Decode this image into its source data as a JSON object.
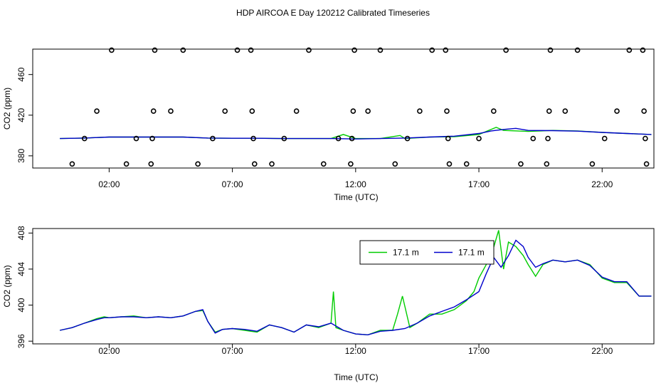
{
  "page": {
    "title": "HDP AIRCOA E  Day 120212  Calibrated Timeseries"
  },
  "chart_data": [
    {
      "type": "line",
      "xlabel": "Time (UTC)",
      "ylabel": "CO2 (ppm)",
      "x_ticks": [
        2,
        7,
        12,
        17,
        22
      ],
      "x_tick_labels": [
        "02:00",
        "07:00",
        "12:00",
        "17:00",
        "22:00"
      ],
      "xlim": [
        -1.1,
        24.1
      ],
      "ylim": [
        368,
        485
      ],
      "y_ticks": [
        380,
        420,
        460
      ],
      "y_tick_labels": [
        "380",
        "420",
        "460"
      ],
      "colors": {
        "green": "#00cc00",
        "blue": "#0000cc",
        "points": "#000000"
      },
      "series": [
        {
          "color": "green",
          "x": [
            0,
            1,
            2,
            3,
            4,
            5,
            6,
            7,
            8,
            9,
            10,
            11,
            11.5,
            12,
            13,
            13.8,
            14,
            15,
            16,
            17,
            17.7,
            18,
            19,
            20,
            21,
            22,
            23,
            24
          ],
          "y": [
            397,
            397.5,
            398.5,
            398.5,
            398.5,
            398.5,
            397.5,
            397.3,
            397.3,
            397,
            397,
            397,
            401,
            397,
            397,
            400,
            397,
            398.5,
            398.8,
            401,
            408,
            405,
            404,
            405,
            404.5,
            403,
            402,
            401
          ]
        },
        {
          "color": "blue",
          "x": [
            0,
            1,
            2,
            3,
            4,
            5,
            6,
            7,
            8,
            9,
            10,
            11,
            12,
            13,
            14,
            15,
            16,
            17,
            17.5,
            18,
            18.5,
            19,
            20,
            21,
            22,
            23,
            24
          ],
          "y": [
            397,
            397.5,
            398.5,
            398.5,
            398.5,
            398.5,
            397.5,
            397.3,
            397.3,
            397,
            397,
            397,
            396.6,
            397,
            397.5,
            398.5,
            399.3,
            402,
            404.5,
            406,
            407,
            405,
            404.8,
            404.3,
            403,
            402,
            401
          ]
        }
      ],
      "scatter_points": [
        {
          "x": 0.5,
          "y": 372
        },
        {
          "x": 1,
          "y": 397
        },
        {
          "x": 1.5,
          "y": 424
        },
        {
          "x": 2.1,
          "y": 484
        },
        {
          "x": 2.7,
          "y": 372
        },
        {
          "x": 3.1,
          "y": 397
        },
        {
          "x": 3.7,
          "y": 372
        },
        {
          "x": 3.75,
          "y": 397
        },
        {
          "x": 3.8,
          "y": 424
        },
        {
          "x": 3.85,
          "y": 484
        },
        {
          "x": 4.5,
          "y": 424
        },
        {
          "x": 5,
          "y": 484
        },
        {
          "x": 5.6,
          "y": 372
        },
        {
          "x": 6.2,
          "y": 397
        },
        {
          "x": 6.7,
          "y": 424
        },
        {
          "x": 7.2,
          "y": 484
        },
        {
          "x": 7.75,
          "y": 484
        },
        {
          "x": 7.8,
          "y": 424
        },
        {
          "x": 7.85,
          "y": 397
        },
        {
          "x": 7.9,
          "y": 372
        },
        {
          "x": 8.6,
          "y": 372
        },
        {
          "x": 9.1,
          "y": 397
        },
        {
          "x": 9.6,
          "y": 424
        },
        {
          "x": 10.1,
          "y": 484
        },
        {
          "x": 10.7,
          "y": 372
        },
        {
          "x": 11.3,
          "y": 397
        },
        {
          "x": 11.8,
          "y": 372
        },
        {
          "x": 11.85,
          "y": 397
        },
        {
          "x": 11.9,
          "y": 424
        },
        {
          "x": 11.95,
          "y": 484
        },
        {
          "x": 12.5,
          "y": 424
        },
        {
          "x": 13.0,
          "y": 484
        },
        {
          "x": 13.6,
          "y": 372
        },
        {
          "x": 14.1,
          "y": 397
        },
        {
          "x": 14.6,
          "y": 424
        },
        {
          "x": 15.1,
          "y": 484
        },
        {
          "x": 15.65,
          "y": 484
        },
        {
          "x": 15.7,
          "y": 424
        },
        {
          "x": 15.75,
          "y": 397
        },
        {
          "x": 15.8,
          "y": 372
        },
        {
          "x": 16.5,
          "y": 372
        },
        {
          "x": 17.0,
          "y": 397
        },
        {
          "x": 17.6,
          "y": 424
        },
        {
          "x": 18.1,
          "y": 484
        },
        {
          "x": 18.7,
          "y": 372
        },
        {
          "x": 19.2,
          "y": 397
        },
        {
          "x": 19.75,
          "y": 372
        },
        {
          "x": 19.8,
          "y": 397
        },
        {
          "x": 19.85,
          "y": 424
        },
        {
          "x": 19.9,
          "y": 484
        },
        {
          "x": 20.5,
          "y": 424
        },
        {
          "x": 21.0,
          "y": 484
        },
        {
          "x": 21.6,
          "y": 372
        },
        {
          "x": 22.1,
          "y": 397
        },
        {
          "x": 22.6,
          "y": 424
        },
        {
          "x": 23.1,
          "y": 484
        },
        {
          "x": 23.65,
          "y": 484
        },
        {
          "x": 23.7,
          "y": 424
        },
        {
          "x": 23.75,
          "y": 397
        },
        {
          "x": 23.8,
          "y": 372
        }
      ]
    },
    {
      "type": "line",
      "xlabel": "Time (UTC)",
      "ylabel": "CO2 (ppm)",
      "x_ticks": [
        2,
        7,
        12,
        17,
        22
      ],
      "x_tick_labels": [
        "02:00",
        "07:00",
        "12:00",
        "17:00",
        "22:00"
      ],
      "xlim": [
        -1.1,
        24.1
      ],
      "ylim": [
        395.7,
        408.5
      ],
      "y_ticks": [
        396,
        400,
        404,
        408
      ],
      "y_tick_labels": [
        "396",
        "400",
        "404",
        "408"
      ],
      "legend": {
        "placement": "top-right",
        "entries": [
          {
            "label": "17.1 m",
            "color": "#00cc00"
          },
          {
            "label": "17.1 m",
            "color": "#0000cc"
          }
        ]
      },
      "series": [
        {
          "color": "green",
          "x": [
            0,
            0.5,
            1,
            1.5,
            1.8,
            2,
            2.5,
            3,
            3.5,
            4,
            4.5,
            5,
            5.5,
            5.8,
            6,
            6.3,
            6.6,
            7,
            7.5,
            8,
            8.5,
            9,
            9.5,
            10,
            10.5,
            11,
            11.1,
            11.2,
            11.5,
            12,
            12.5,
            13,
            13.5,
            13.7,
            13.9,
            14.2,
            14.5,
            15,
            15.5,
            16,
            16.5,
            16.8,
            17,
            17.3,
            17.5,
            17.8,
            18,
            18.2,
            18.5,
            18.8,
            19,
            19.3,
            19.6,
            20,
            20.5,
            21,
            21.5,
            22,
            22.5,
            23,
            23.5,
            24
          ],
          "y": [
            397.2,
            397.5,
            398,
            398.5,
            398.7,
            398.6,
            398.7,
            398.8,
            398.6,
            398.7,
            398.6,
            398.8,
            399.3,
            399.4,
            398.2,
            397,
            397.3,
            397.4,
            397.2,
            397,
            397.8,
            397.5,
            397,
            397.8,
            397.5,
            398,
            401.5,
            397.5,
            397.2,
            396.8,
            396.7,
            397.2,
            397.2,
            399,
            401,
            397.5,
            398,
            399,
            399,
            399.5,
            400.5,
            401.5,
            403,
            404.5,
            405.5,
            408.3,
            404,
            407,
            406.5,
            405.5,
            404.5,
            403.2,
            404.5,
            405,
            404.8,
            405,
            404.5,
            403,
            402.5,
            402.5,
            401,
            401
          ]
        },
        {
          "color": "blue",
          "x": [
            0,
            0.5,
            1,
            1.5,
            1.8,
            2,
            2.5,
            3,
            3.5,
            4,
            4.5,
            5,
            5.5,
            5.8,
            6,
            6.3,
            6.6,
            7,
            7.5,
            8,
            8.5,
            9,
            9.5,
            10,
            10.5,
            11,
            11.5,
            12,
            12.5,
            13,
            13.5,
            14,
            14.5,
            15,
            15.5,
            16,
            16.5,
            17,
            17.3,
            17.6,
            17.9,
            18.2,
            18.5,
            18.8,
            19,
            19.3,
            19.6,
            20,
            20.5,
            21,
            21.5,
            22,
            22.5,
            23,
            23.5,
            24
          ],
          "y": [
            397.2,
            397.5,
            398,
            398.4,
            398.6,
            398.6,
            398.7,
            398.7,
            398.6,
            398.7,
            398.6,
            398.8,
            399.3,
            399.5,
            398.2,
            396.9,
            397.3,
            397.4,
            397.3,
            397.1,
            397.8,
            397.5,
            397,
            397.8,
            397.6,
            398,
            397.2,
            396.8,
            396.7,
            397.1,
            397.2,
            397.4,
            398,
            398.8,
            399.3,
            399.8,
            400.6,
            401.5,
            403.5,
            405.3,
            404.2,
            405.5,
            407.2,
            406.5,
            405.3,
            404.2,
            404.6,
            405,
            404.8,
            405,
            404.4,
            403.1,
            402.6,
            402.6,
            401,
            401
          ]
        }
      ]
    }
  ]
}
